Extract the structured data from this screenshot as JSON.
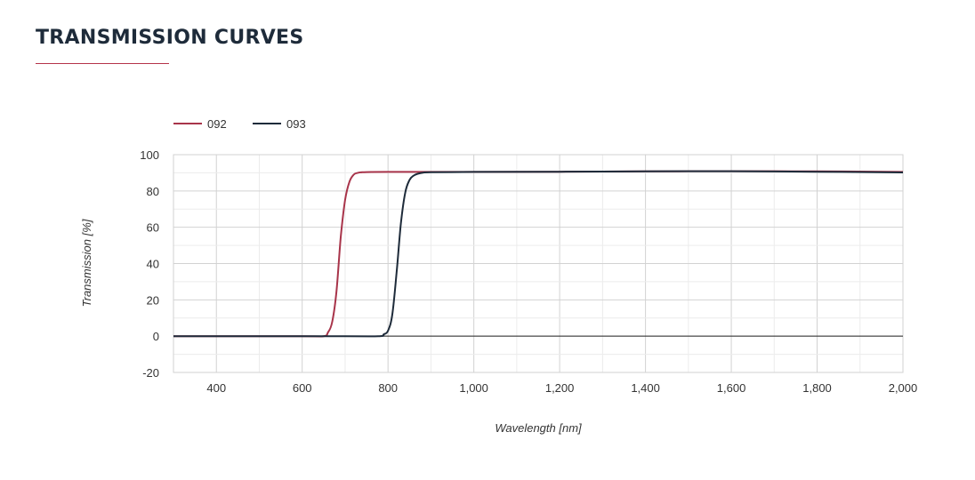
{
  "header": {
    "title": "TRANSMISSION CURVES"
  },
  "colors": {
    "accent": "#b5334a",
    "series_092": "#a8344a",
    "series_093": "#1e2b3a",
    "grid": "#dcdcdc"
  },
  "chart_data": {
    "type": "line",
    "title": "",
    "xlabel": "Wavelength [nm]",
    "ylabel": "Transmission [%]",
    "xlim": [
      300,
      2000
    ],
    "ylim": [
      -20,
      100
    ],
    "x_ticks": [
      400,
      600,
      800,
      1000,
      1200,
      1400,
      1600,
      1800,
      2000
    ],
    "x_tick_labels": [
      "400",
      "600",
      "800",
      "1,000",
      "1,200",
      "1,400",
      "1,600",
      "1,800",
      "2,000"
    ],
    "y_ticks": [
      -20,
      0,
      20,
      40,
      60,
      80,
      100
    ],
    "y_tick_labels": [
      "-20",
      "0",
      "20",
      "40",
      "60",
      "80",
      "100"
    ],
    "grid": true,
    "legend_position": "top-left",
    "series": [
      {
        "name": "092",
        "color": "#a8344a",
        "x": [
          300,
          600,
          650,
          660,
          670,
          680,
          690,
          700,
          710,
          720,
          730,
          740,
          750,
          800,
          900,
          1000,
          1200,
          1400,
          1600,
          1800,
          2000
        ],
        "y": [
          0,
          0,
          0,
          2,
          8,
          25,
          55,
          75,
          85,
          89,
          90,
          90.3,
          90.4,
          90.5,
          90.5,
          90.5,
          90.6,
          90.8,
          90.9,
          90.8,
          90.5
        ]
      },
      {
        "name": "093",
        "color": "#1e2b3a",
        "x": [
          300,
          700,
          780,
          790,
          800,
          810,
          820,
          830,
          840,
          850,
          860,
          870,
          880,
          900,
          1000,
          1200,
          1400,
          1600,
          1800,
          2000
        ],
        "y": [
          0,
          0,
          0,
          1,
          3,
          12,
          35,
          62,
          79,
          86,
          88.5,
          89.5,
          90,
          90.3,
          90.5,
          90.6,
          90.8,
          90.9,
          90.6,
          90.2
        ]
      }
    ]
  }
}
